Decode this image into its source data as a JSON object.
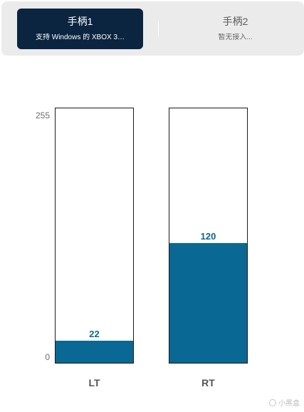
{
  "controllers": {
    "tabs": [
      {
        "name": "手柄1",
        "subtitle": "支持 Windows 的 XBOX 3…",
        "active": true
      },
      {
        "name": "手柄2",
        "subtitle": "暂无接入...",
        "active": false
      }
    ]
  },
  "triggers": {
    "axis": {
      "max_label": "255",
      "min_label": "0"
    },
    "max": 255,
    "items": [
      {
        "name": "LT",
        "value": 22,
        "value_label": "22"
      },
      {
        "name": "RT",
        "value": 120,
        "value_label": "120"
      }
    ],
    "fill_color": "#0a6894"
  },
  "watermark": {
    "text": "小黑盒"
  }
}
